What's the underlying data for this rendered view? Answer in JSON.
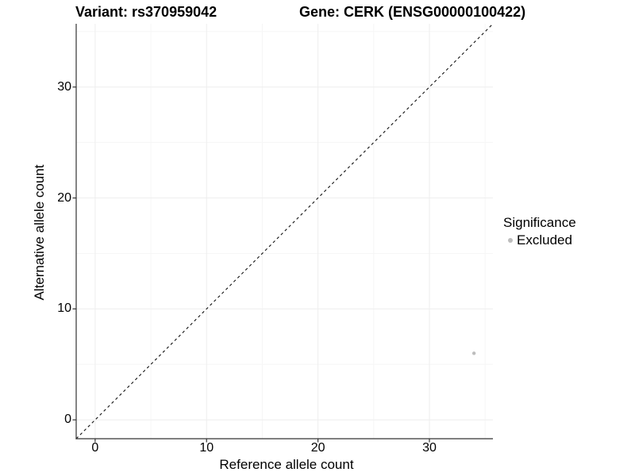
{
  "titles": {
    "variant": "Variant: rs370959042",
    "gene": "Gene: CERK (ENSG00000100422)"
  },
  "chart_data": {
    "type": "scatter",
    "title_left": "Variant: rs370959042",
    "title_right": "Gene: CERK (ENSG00000100422)",
    "xlabel": "Reference allele count",
    "ylabel": "Alternative allele count",
    "xlim": [
      -1.7,
      35.7
    ],
    "ylim": [
      -1.7,
      35.7
    ],
    "x_major_ticks": [
      0,
      10,
      20,
      30
    ],
    "y_major_ticks": [
      0,
      10,
      20,
      30
    ],
    "x_minor_ticks": [
      5,
      15,
      25,
      35
    ],
    "y_minor_ticks": [
      5,
      15,
      25,
      35
    ],
    "grid": "major and minor gridlines on, very light gray",
    "identity_line": {
      "style": "dashed",
      "from": [
        -1.7,
        -1.7
      ],
      "to": [
        35.7,
        35.7
      ],
      "color": "#111111"
    },
    "series": [
      {
        "name": "Excluded",
        "color": "#bdbdbd",
        "points": [
          {
            "x": 34,
            "y": 6
          }
        ]
      }
    ],
    "legend": {
      "title": "Significance",
      "position": "right",
      "items": [
        {
          "label": "Excluded",
          "marker": "circle",
          "color": "#bdbdbd"
        }
      ]
    }
  },
  "colors": {
    "background": "#ffffff",
    "axis_line": "#333333",
    "major_grid": "#eeeeee",
    "minor_grid": "#f6f6f6",
    "point": "#bdbdbd",
    "text": "#000000"
  }
}
